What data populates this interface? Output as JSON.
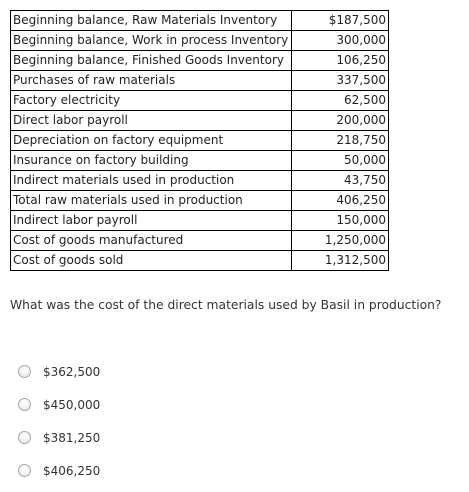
{
  "table": {
    "rows": [
      {
        "label": "Beginning balance, Raw Materials Inventory",
        "value": "$187,500"
      },
      {
        "label": "Beginning balance, Work in process Inventory",
        "value": "300,000"
      },
      {
        "label": "Beginning balance, Finished Goods Inventory",
        "value": "106,250"
      },
      {
        "label": "Purchases of raw materials",
        "value": "337,500"
      },
      {
        "label": "Factory electricity",
        "value": "62,500"
      },
      {
        "label": "Direct labor payroll",
        "value": "200,000"
      },
      {
        "label": "Depreciation on factory equipment",
        "value": "218,750"
      },
      {
        "label": "Insurance on factory building",
        "value": "50,000"
      },
      {
        "label": "Indirect materials used in production",
        "value": "43,750"
      },
      {
        "label": "Total raw materials used in production",
        "value": "406,250"
      },
      {
        "label": "Indirect labor payroll",
        "value": "150,000"
      },
      {
        "label": "Cost of goods manufactured",
        "value": "1,250,000"
      },
      {
        "label": "Cost of goods sold",
        "value": "1,312,500"
      }
    ]
  },
  "question": {
    "text": "What was the cost of the direct materials used by Basil in production?"
  },
  "options": [
    {
      "label": "$362,500"
    },
    {
      "label": "$450,000"
    },
    {
      "label": "$381,250"
    },
    {
      "label": "$406,250"
    }
  ]
}
